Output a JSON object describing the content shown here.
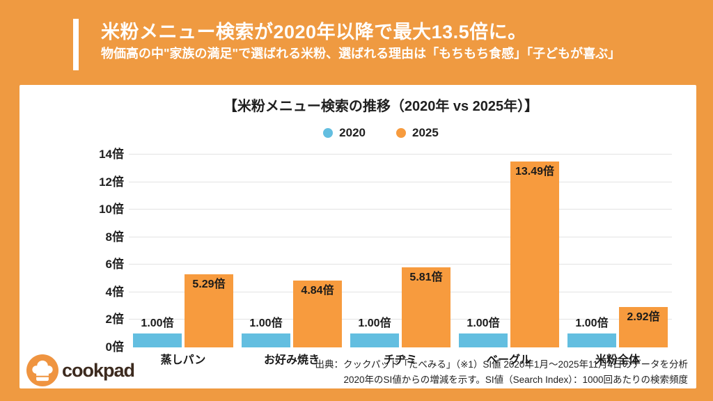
{
  "page": {
    "background_color": "#ef9a41",
    "card_color": "#ffffff"
  },
  "header": {
    "title": "米粉メニュー検索が2020年以降で最大13.5倍に。",
    "subtitle": "物価高の中\"家族の満足\"で選ばれる米粉、選ばれる理由は「もちもち食感」「子どもが喜ぶ」"
  },
  "chart_data": {
    "type": "bar",
    "title": "【米粉メニュー検索の推移（2020年 vs 2025年）】",
    "categories": [
      "蒸しパン",
      "お好み焼き",
      "チヂミ",
      "ベーグル",
      "米粉全体"
    ],
    "series": [
      {
        "name": "2020",
        "color": "#63bee0",
        "values": [
          1.0,
          1.0,
          1.0,
          1.0,
          1.0
        ],
        "value_suffix": "倍",
        "label_position": "above"
      },
      {
        "name": "2025",
        "color": "#f79b3e",
        "values": [
          5.29,
          4.84,
          5.81,
          13.49,
          2.92
        ],
        "value_suffix": "倍",
        "label_position": "inside"
      }
    ],
    "ylabel": "",
    "xlabel": "",
    "ylim": [
      0,
      14
    ],
    "ytick_step": 2,
    "ytick_suffix": "倍",
    "grid": true,
    "legend_position": "top-center"
  },
  "footer": {
    "source_line1": "出典：クックパッド「たべみる」（※1）SI値 2020年1月〜2025年11月4日のデータを分析",
    "source_line2": "2020年のSI値からの増減を示す。SI値（Search Index）：1000回あたりの検索頻度"
  },
  "logo": {
    "text": "cookpad",
    "icon": "chef-hat-icon",
    "circle_color": "#ef9440",
    "text_color": "#3c2a1e"
  }
}
